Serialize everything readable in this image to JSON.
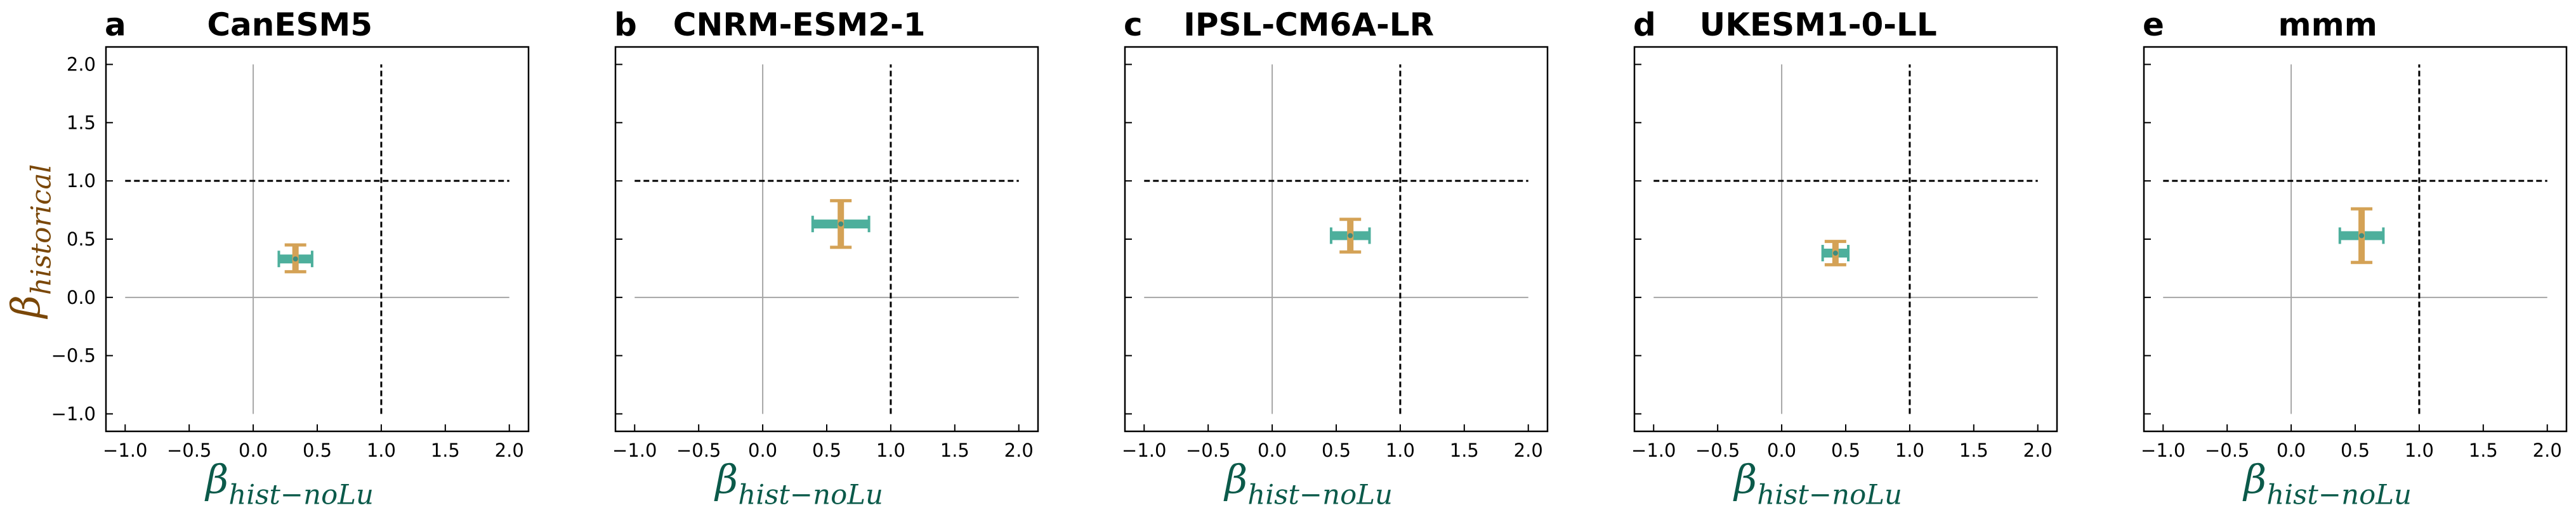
{
  "colors": {
    "beta_hist_nolu": "#4daf9c",
    "beta_historical": "#d4a256",
    "xlabel_color": "#0b5a4a",
    "ylabel_color": "#7a4708",
    "zero_line": "#a6a6a6",
    "ref_line": "#000000"
  },
  "chart_data": [
    {
      "type": "scatter",
      "panel_letter": "a",
      "title": "CanESM5",
      "xlabel": "β_hist−noLu",
      "ylabel": "β_historical",
      "xlim": [
        -1.15,
        2.15
      ],
      "ylim": [
        -1.15,
        2.15
      ],
      "xticks": [
        -1.0,
        -0.5,
        0.0,
        0.5,
        1.0,
        1.5,
        2.0
      ],
      "yticks": [
        -1.0,
        -0.5,
        0.0,
        0.5,
        1.0,
        1.5,
        2.0
      ],
      "grid": false,
      "point": {
        "x": 0.33,
        "y": 0.33,
        "x_err_low": 0.13,
        "x_err_high": 0.13,
        "y_err_low": 0.11,
        "y_err_high": 0.12
      }
    },
    {
      "type": "scatter",
      "panel_letter": "b",
      "title": "CNRM-ESM2-1",
      "xlabel": "β_hist−noLu",
      "ylabel": "",
      "xlim": [
        -1.15,
        2.15
      ],
      "ylim": [
        -1.15,
        2.15
      ],
      "xticks": [
        -1.0,
        -0.5,
        0.0,
        0.5,
        1.0,
        1.5,
        2.0
      ],
      "yticks": [
        -1.0,
        -0.5,
        0.0,
        0.5,
        1.0,
        1.5,
        2.0
      ],
      "grid": false,
      "point": {
        "x": 0.61,
        "y": 0.63,
        "x_err_low": 0.22,
        "x_err_high": 0.22,
        "y_err_low": 0.2,
        "y_err_high": 0.2
      }
    },
    {
      "type": "scatter",
      "panel_letter": "c",
      "title": "IPSL-CM6A-LR",
      "xlabel": "β_hist−noLu",
      "ylabel": "",
      "xlim": [
        -1.15,
        2.15
      ],
      "ylim": [
        -1.15,
        2.15
      ],
      "xticks": [
        -1.0,
        -0.5,
        0.0,
        0.5,
        1.0,
        1.5,
        2.0
      ],
      "yticks": [
        -1.0,
        -0.5,
        0.0,
        0.5,
        1.0,
        1.5,
        2.0
      ],
      "grid": false,
      "point": {
        "x": 0.61,
        "y": 0.53,
        "x_err_low": 0.15,
        "x_err_high": 0.15,
        "y_err_low": 0.14,
        "y_err_high": 0.14
      }
    },
    {
      "type": "scatter",
      "panel_letter": "d",
      "title": "UKESM1-0-LL",
      "xlabel": "β_hist−noLu",
      "ylabel": "",
      "xlim": [
        -1.15,
        2.15
      ],
      "ylim": [
        -1.15,
        2.15
      ],
      "xticks": [
        -1.0,
        -0.5,
        0.0,
        0.5,
        1.0,
        1.5,
        2.0
      ],
      "yticks": [
        -1.0,
        -0.5,
        0.0,
        0.5,
        1.0,
        1.5,
        2.0
      ],
      "grid": false,
      "point": {
        "x": 0.42,
        "y": 0.38,
        "x_err_low": 0.1,
        "x_err_high": 0.1,
        "y_err_low": 0.1,
        "y_err_high": 0.1
      }
    },
    {
      "type": "scatter",
      "panel_letter": "e",
      "title": "mmm",
      "xlabel": "β_hist−noLu",
      "ylabel": "",
      "xlim": [
        -1.15,
        2.15
      ],
      "ylim": [
        -1.15,
        2.15
      ],
      "xticks": [
        -1.0,
        -0.5,
        0.0,
        0.5,
        1.0,
        1.5,
        2.0
      ],
      "yticks": [
        -1.0,
        -0.5,
        0.0,
        0.5,
        1.0,
        1.5,
        2.0
      ],
      "grid": false,
      "point": {
        "x": 0.55,
        "y": 0.53,
        "x_err_low": 0.17,
        "x_err_high": 0.17,
        "y_err_low": 0.23,
        "y_err_high": 0.23
      }
    }
  ]
}
